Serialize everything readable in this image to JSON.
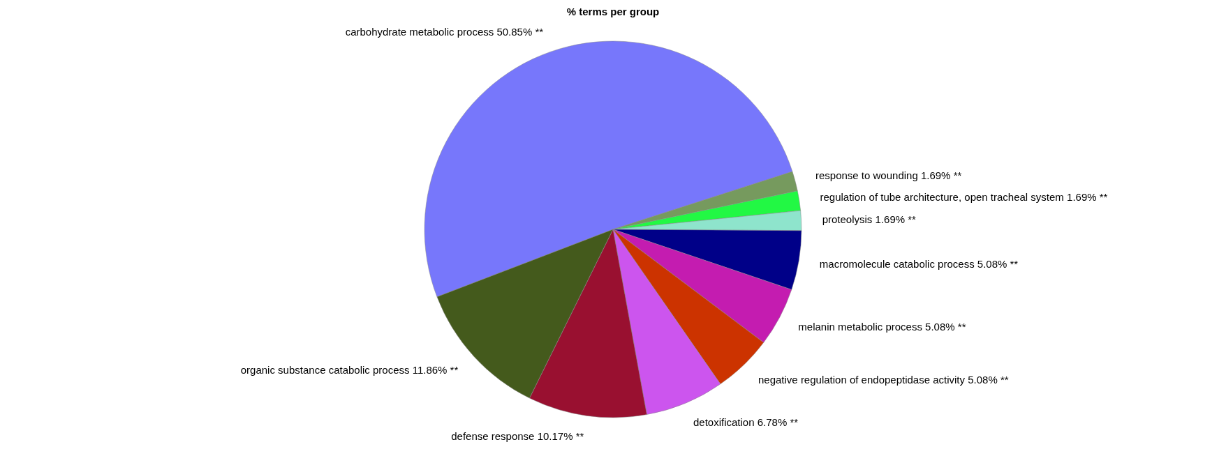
{
  "chart_data": {
    "type": "pie",
    "title": "% terms per group",
    "categories": [
      "carbohydrate metabolic process",
      "response to wounding",
      "regulation of tube architecture, open tracheal system",
      "proteolysis",
      "macromolecule catabolic process",
      "melanin metabolic process",
      "negative regulation of endopeptidase activity",
      "detoxification",
      "defense response",
      "organic substance catabolic process"
    ],
    "values": [
      50.85,
      1.69,
      1.69,
      1.69,
      5.08,
      5.08,
      5.08,
      6.78,
      10.17,
      11.86
    ],
    "value_labels": [
      "50.85% **",
      "1.69% **",
      "1.69% **",
      "1.69% **",
      "5.08% **",
      "5.08% **",
      "5.08% **",
      "6.78% **",
      "10.17% **",
      "11.86% **"
    ],
    "colors": [
      "#7777fb",
      "#769a5e",
      "#22f844",
      "#8ee4cc",
      "#000088",
      "#c41cb0",
      "#cc3300",
      "#cc55ee",
      "#991030",
      "#445a1c"
    ],
    "legend": false
  }
}
